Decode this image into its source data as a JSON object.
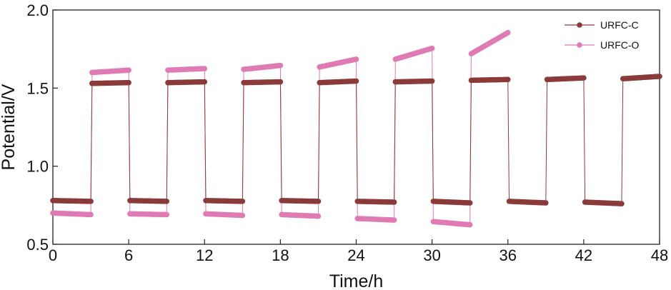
{
  "chart_data": {
    "type": "line",
    "xlabel": "Time/h",
    "ylabel": "Potential/V",
    "xlim": [
      0,
      48
    ],
    "ylim": [
      0.5,
      2.0
    ],
    "xticks": [
      "0",
      "6",
      "12",
      "18",
      "24",
      "30",
      "36",
      "42",
      "48"
    ],
    "yticks": [
      "0.5",
      "1.0",
      "1.5",
      "2.0"
    ],
    "legend_position": "top-right",
    "series": [
      {
        "name": "URFC-C",
        "color": "#8b3a3a",
        "points": [
          [
            0,
            0.78
          ],
          [
            3,
            0.775
          ],
          [
            3.1,
            1.53
          ],
          [
            6,
            1.535
          ],
          [
            6.1,
            0.78
          ],
          [
            9,
            0.775
          ],
          [
            9.1,
            1.535
          ],
          [
            12,
            1.54
          ],
          [
            12.1,
            0.78
          ],
          [
            15,
            0.775
          ],
          [
            15.1,
            1.535
          ],
          [
            18,
            1.54
          ],
          [
            18.1,
            0.78
          ],
          [
            21,
            0.775
          ],
          [
            21.1,
            1.535
          ],
          [
            24,
            1.545
          ],
          [
            24.1,
            0.775
          ],
          [
            27,
            0.77
          ],
          [
            27.1,
            1.54
          ],
          [
            30,
            1.545
          ],
          [
            30.1,
            0.775
          ],
          [
            33,
            0.765
          ],
          [
            33.1,
            1.55
          ],
          [
            36,
            1.555
          ],
          [
            36.1,
            0.775
          ],
          [
            39,
            0.765
          ],
          [
            39.1,
            1.555
          ],
          [
            42,
            1.565
          ],
          [
            42.1,
            0.77
          ],
          [
            45,
            0.76
          ],
          [
            45.1,
            1.56
          ],
          [
            48,
            1.575
          ]
        ]
      },
      {
        "name": "URFC-O",
        "color": "#e07ab4",
        "points": [
          [
            0,
            0.7
          ],
          [
            3,
            0.69
          ],
          [
            3.1,
            1.6
          ],
          [
            6,
            1.615
          ],
          [
            6.1,
            0.695
          ],
          [
            9,
            0.69
          ],
          [
            9.1,
            1.615
          ],
          [
            12,
            1.625
          ],
          [
            12.1,
            0.695
          ],
          [
            15,
            0.685
          ],
          [
            15.1,
            1.62
          ],
          [
            18,
            1.645
          ],
          [
            18.1,
            0.69
          ],
          [
            21,
            0.68
          ],
          [
            21.1,
            1.635
          ],
          [
            24,
            1.685
          ],
          [
            24.1,
            0.665
          ],
          [
            27,
            0.655
          ],
          [
            27.1,
            1.685
          ],
          [
            30,
            1.755
          ],
          [
            30.1,
            0.645
          ],
          [
            33,
            0.625
          ],
          [
            33.1,
            1.72
          ],
          [
            36,
            1.855
          ]
        ]
      }
    ]
  }
}
